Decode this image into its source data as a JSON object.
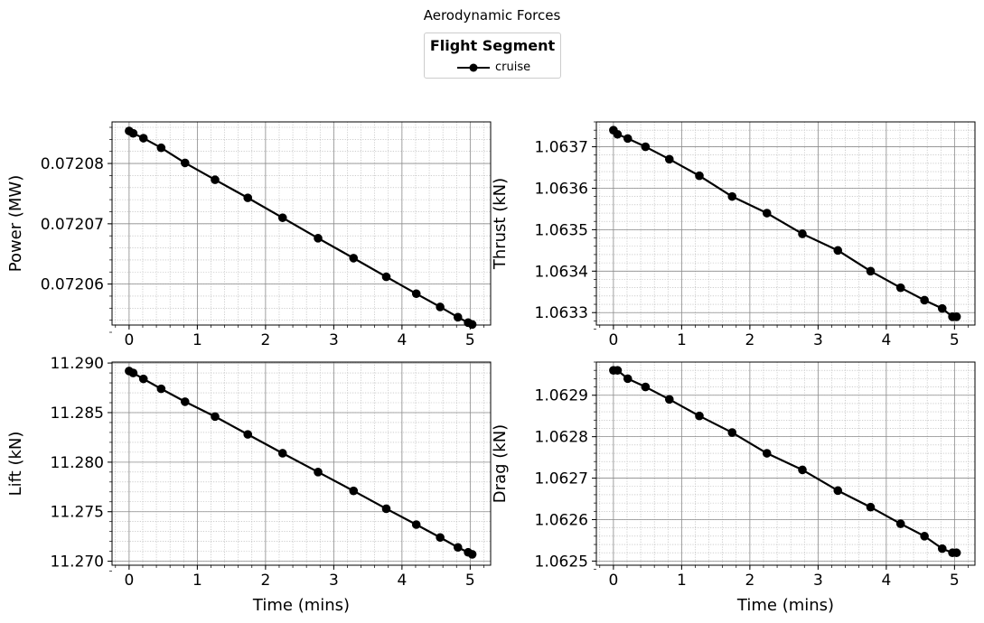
{
  "figure": {
    "title": "Aerodynamic Forces"
  },
  "legend": {
    "title": "Flight Segment",
    "entries": [
      "cruise"
    ]
  },
  "colors": {
    "series": "#000000",
    "grid_major": "#8c8c8c",
    "grid_minor": "#b0b0b0"
  },
  "chart_data": [
    {
      "type": "line",
      "ylabel": "Power (MW)",
      "xlabel": "",
      "xlim": [
        -0.25,
        5.3
      ],
      "ylim": [
        0.0720532,
        0.0720869
      ],
      "xticks": [
        0,
        1,
        2,
        3,
        4,
        5
      ],
      "xtick_labels": [
        "0",
        "1",
        "2",
        "3",
        "4",
        "5"
      ],
      "yticks": [
        0.07206,
        0.07207,
        0.07208
      ],
      "ytick_labels": [
        "0.07206",
        "0.07207",
        "0.07208"
      ],
      "grid": true,
      "series": [
        {
          "name": "cruise",
          "x": [
            0.0,
            0.06,
            0.21,
            0.47,
            0.82,
            1.26,
            1.74,
            2.25,
            2.77,
            3.29,
            3.77,
            4.21,
            4.56,
            4.82,
            4.97,
            5.03
          ],
          "y": [
            0.0720854,
            0.072085,
            0.0720842,
            0.0720826,
            0.0720801,
            0.0720773,
            0.0720743,
            0.072071,
            0.0720676,
            0.0720643,
            0.0720612,
            0.0720584,
            0.0720562,
            0.0720545,
            0.0720536,
            0.0720533
          ]
        }
      ]
    },
    {
      "type": "line",
      "ylabel": "Thrust (kN)",
      "xlabel": "",
      "xlim": [
        -0.25,
        5.3
      ],
      "ylim": [
        1.06327,
        1.06376
      ],
      "xticks": [
        0,
        1,
        2,
        3,
        4,
        5
      ],
      "xtick_labels": [
        "0",
        "1",
        "2",
        "3",
        "4",
        "5"
      ],
      "yticks": [
        1.0633,
        1.0634,
        1.0635,
        1.0636,
        1.0637
      ],
      "ytick_labels": [
        "1.0633",
        "1.0634",
        "1.0635",
        "1.0636",
        "1.0637"
      ],
      "grid": true,
      "series": [
        {
          "name": "cruise",
          "x": [
            0.0,
            0.06,
            0.21,
            0.47,
            0.82,
            1.26,
            1.74,
            2.25,
            2.77,
            3.29,
            3.77,
            4.21,
            4.56,
            4.82,
            4.97,
            5.03
          ],
          "y": [
            1.06374,
            1.06373,
            1.06372,
            1.0637,
            1.06367,
            1.06363,
            1.06358,
            1.06354,
            1.06349,
            1.06345,
            1.0634,
            1.06336,
            1.06333,
            1.06331,
            1.06329,
            1.06329
          ]
        }
      ]
    },
    {
      "type": "line",
      "ylabel": "Lift (kN)",
      "xlabel": "Time (mins)",
      "xlim": [
        -0.25,
        5.3
      ],
      "ylim": [
        11.2696,
        11.2901
      ],
      "xticks": [
        0,
        1,
        2,
        3,
        4,
        5
      ],
      "xtick_labels": [
        "0",
        "1",
        "2",
        "3",
        "4",
        "5"
      ],
      "yticks": [
        11.27,
        11.275,
        11.28,
        11.285,
        11.29
      ],
      "ytick_labels": [
        "11.270",
        "11.275",
        "11.280",
        "11.285",
        "11.290"
      ],
      "grid": true,
      "series": [
        {
          "name": "cruise",
          "x": [
            0.0,
            0.06,
            0.21,
            0.47,
            0.82,
            1.26,
            1.74,
            2.25,
            2.77,
            3.29,
            3.77,
            4.21,
            4.56,
            4.82,
            4.97,
            5.03
          ],
          "y": [
            11.2892,
            11.289,
            11.2884,
            11.2874,
            11.2861,
            11.2846,
            11.2828,
            11.2809,
            11.279,
            11.2771,
            11.2753,
            11.2737,
            11.2724,
            11.2714,
            11.2709,
            11.2707
          ]
        }
      ]
    },
    {
      "type": "line",
      "ylabel": "Drag (kN)",
      "xlabel": "Time (mins)",
      "xlim": [
        -0.25,
        5.3
      ],
      "ylim": [
        1.06249,
        1.06298
      ],
      "xticks": [
        0,
        1,
        2,
        3,
        4,
        5
      ],
      "xtick_labels": [
        "0",
        "1",
        "2",
        "3",
        "4",
        "5"
      ],
      "yticks": [
        1.0625,
        1.0626,
        1.0627,
        1.0628,
        1.0629
      ],
      "ytick_labels": [
        "1.0625",
        "1.0626",
        "1.0627",
        "1.0628",
        "1.0629"
      ],
      "grid": true,
      "series": [
        {
          "name": "cruise",
          "x": [
            0.0,
            0.06,
            0.21,
            0.47,
            0.82,
            1.26,
            1.74,
            2.25,
            2.77,
            3.29,
            3.77,
            4.21,
            4.56,
            4.82,
            4.97,
            5.03
          ],
          "y": [
            1.06296,
            1.06296,
            1.06294,
            1.06292,
            1.06289,
            1.06285,
            1.06281,
            1.06276,
            1.06272,
            1.06267,
            1.06263,
            1.06259,
            1.06256,
            1.06253,
            1.06252,
            1.06252
          ]
        }
      ]
    }
  ]
}
